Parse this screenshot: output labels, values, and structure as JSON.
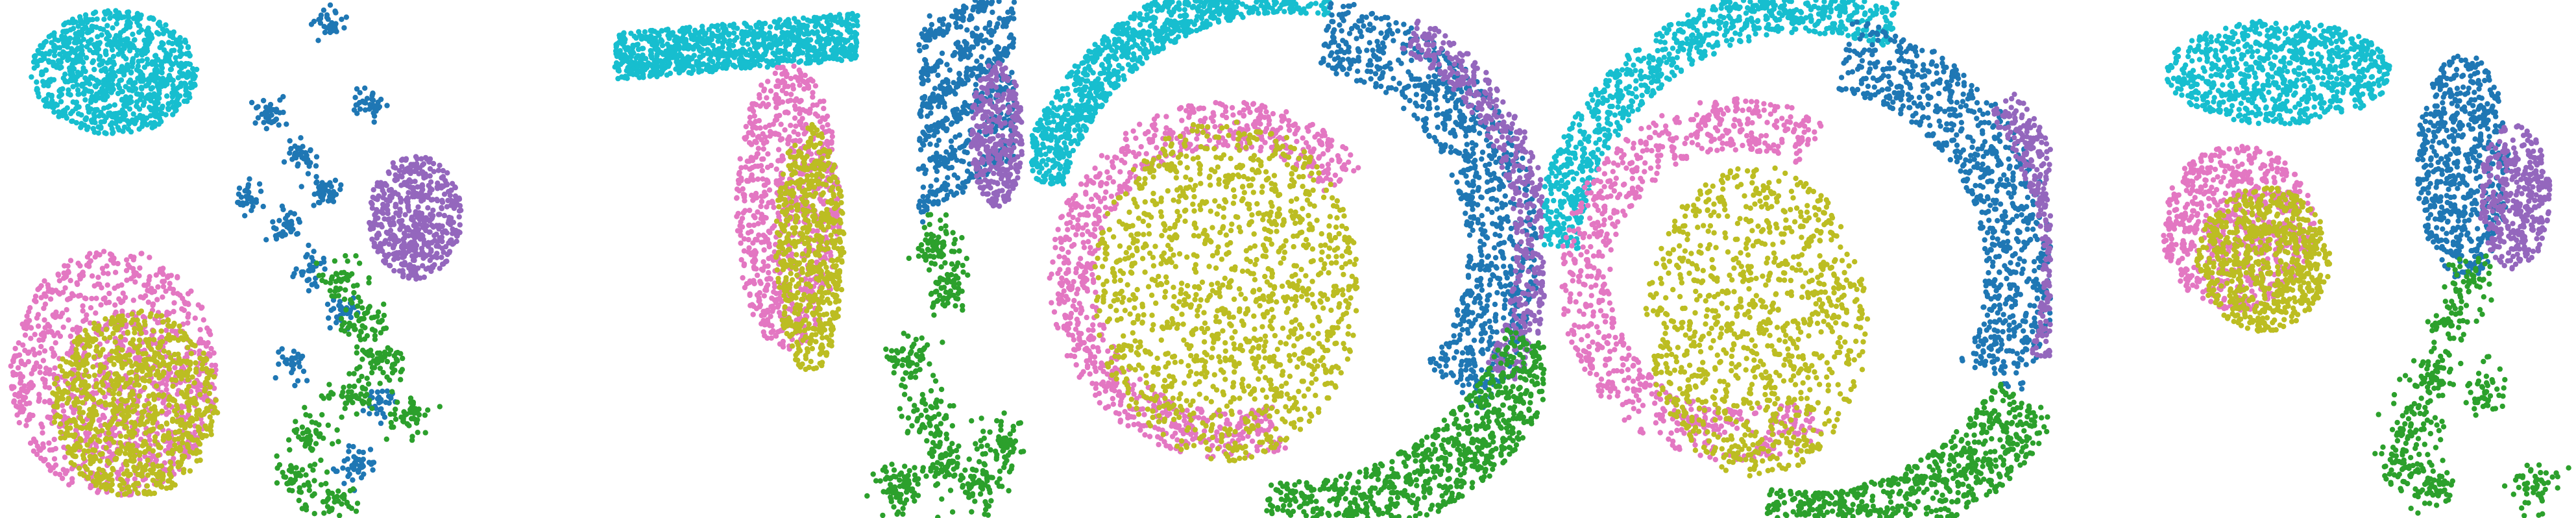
{
  "figure": {
    "description_free": true,
    "panel_count": 5,
    "point_radius_hint": "small"
  },
  "palette": {
    "cyan": "#17becf",
    "blue": "#1f77b4",
    "purple": "#9467bd",
    "green": "#2ca02c",
    "pink": "#e377c2",
    "olive": "#bcbd22"
  },
  "chart_data": [
    {
      "type": "scatter",
      "title": "",
      "xlabel": "",
      "ylabel": "",
      "grid": false,
      "axes_visible": false,
      "legend": "none",
      "xlim": [
        0,
        100
      ],
      "ylim": [
        0,
        100
      ],
      "series": [
        {
          "color": "cyan",
          "layout": "blob",
          "n": 900,
          "params": {
            "cx": 22,
            "cy": 86,
            "rx": 16,
            "ry": 12
          }
        },
        {
          "color": "blue",
          "layout": "clusters",
          "n": 420,
          "params": {
            "centers": [
              [
                52,
                78
              ],
              [
                58,
                70
              ],
              [
                63,
                63
              ],
              [
                55,
                56
              ],
              [
                60,
                48
              ],
              [
                66,
                40
              ],
              [
                71,
                80
              ],
              [
                48,
                62
              ],
              [
                63,
                96
              ],
              [
                56,
                30
              ],
              [
                73,
                22
              ],
              [
                69,
                10
              ]
            ],
            "spread": 1.6
          }
        },
        {
          "color": "purple",
          "layout": "blob",
          "n": 520,
          "params": {
            "cx": 80,
            "cy": 58,
            "rx": 9,
            "ry": 12
          }
        },
        {
          "color": "green",
          "layout": "clusters",
          "n": 380,
          "params": {
            "centers": [
              [
                66,
                46
              ],
              [
                70,
                38
              ],
              [
                74,
                30
              ],
              [
                68,
                24
              ],
              [
                60,
                16
              ],
              [
                57,
                8
              ],
              [
                64,
                4
              ],
              [
                78,
                20
              ]
            ],
            "spread": 2.2
          }
        },
        {
          "color": "pink",
          "layout": "blob",
          "n": 1100,
          "params": {
            "cx": 22,
            "cy": 28,
            "rx": 20,
            "ry": 24
          }
        },
        {
          "color": "olive",
          "layout": "blob",
          "n": 900,
          "params": {
            "cx": 26,
            "cy": 22,
            "rx": 16,
            "ry": 18
          }
        }
      ]
    },
    {
      "type": "scatter",
      "title": "",
      "xlabel": "",
      "ylabel": "",
      "grid": false,
      "axes_visible": false,
      "legend": "none",
      "xlim": [
        0,
        100
      ],
      "ylim": [
        0,
        100
      ],
      "series": [
        {
          "color": "cyan",
          "layout": "band",
          "n": 900,
          "params": {
            "x0": 4,
            "x1": 60,
            "y": 93,
            "height": 9
          }
        },
        {
          "color": "pink",
          "layout": "blob",
          "n": 800,
          "params": {
            "cx": 44,
            "cy": 60,
            "rx": 12,
            "ry": 28
          }
        },
        {
          "color": "olive",
          "layout": "blob",
          "n": 600,
          "params": {
            "cx": 49,
            "cy": 52,
            "rx": 8,
            "ry": 24
          }
        },
        {
          "color": "blue",
          "layout": "stripes",
          "n": 700,
          "params": {
            "x0": 74,
            "x1": 96,
            "y0": 60,
            "y1": 98
          }
        },
        {
          "color": "purple",
          "layout": "blob",
          "n": 350,
          "params": {
            "cx": 92,
            "cy": 74,
            "rx": 6,
            "ry": 14
          }
        },
        {
          "color": "green",
          "layout": "clusters",
          "n": 520,
          "params": {
            "centers": [
              [
                78,
                52
              ],
              [
                80,
                44
              ],
              [
                72,
                30
              ],
              [
                76,
                20
              ],
              [
                80,
                10
              ],
              [
                88,
                6
              ],
              [
                93,
                14
              ],
              [
                70,
                6
              ]
            ],
            "spread": 2.6
          }
        }
      ]
    },
    {
      "type": "scatter",
      "title": "",
      "xlabel": "",
      "ylabel": "",
      "grid": false,
      "axes_visible": false,
      "legend": "none",
      "xlim": [
        0,
        100
      ],
      "ylim": [
        0,
        100
      ],
      "series": [
        {
          "color": "cyan",
          "layout": "arc",
          "n": 1100,
          "params": {
            "cx": 50,
            "cy": 52,
            "r": 50,
            "width": 9,
            "a0": 80,
            "a1": 165
          }
        },
        {
          "color": "pink",
          "layout": "ring",
          "n": 900,
          "params": {
            "cx": 38,
            "cy": 46,
            "r": 30,
            "width": 9,
            "a0": 40,
            "a1": 290
          }
        },
        {
          "color": "olive",
          "layout": "blob",
          "n": 1300,
          "params": {
            "cx": 38,
            "cy": 44,
            "rx": 26,
            "ry": 33
          }
        },
        {
          "color": "blue",
          "layout": "arc",
          "n": 900,
          "params": {
            "cx": 50,
            "cy": 52,
            "r": 42,
            "width": 14,
            "a0": -40,
            "a1": 80
          }
        },
        {
          "color": "purple",
          "layout": "arc",
          "n": 500,
          "params": {
            "cx": 50,
            "cy": 52,
            "r": 48,
            "width": 7,
            "a0": -30,
            "a1": 60
          }
        },
        {
          "color": "green",
          "layout": "arc",
          "n": 900,
          "params": {
            "cx": 50,
            "cy": 52,
            "r": 52,
            "width": 14,
            "a0": -95,
            "a1": -20
          }
        }
      ]
    },
    {
      "type": "scatter",
      "title": "",
      "xlabel": "",
      "ylabel": "",
      "grid": false,
      "axes_visible": false,
      "legend": "none",
      "xlim": [
        0,
        100
      ],
      "ylim": [
        0,
        100
      ],
      "series": [
        {
          "color": "cyan",
          "layout": "arc",
          "n": 900,
          "params": {
            "cx": 52,
            "cy": 48,
            "r": 50,
            "width": 9,
            "a0": 70,
            "a1": 175
          }
        },
        {
          "color": "pink",
          "layout": "ring",
          "n": 800,
          "params": {
            "cx": 38,
            "cy": 46,
            "r": 30,
            "width": 10,
            "a0": 60,
            "a1": 300
          }
        },
        {
          "color": "olive",
          "layout": "blob",
          "n": 1000,
          "params": {
            "cx": 42,
            "cy": 38,
            "rx": 22,
            "ry": 30
          }
        },
        {
          "color": "blue",
          "layout": "arc",
          "n": 800,
          "params": {
            "cx": 52,
            "cy": 48,
            "r": 42,
            "width": 14,
            "a0": -30,
            "a1": 80
          }
        },
        {
          "color": "purple",
          "layout": "arc",
          "n": 450,
          "params": {
            "cx": 52,
            "cy": 48,
            "r": 50,
            "width": 7,
            "a0": -20,
            "a1": 40
          }
        },
        {
          "color": "green",
          "layout": "arc",
          "n": 800,
          "params": {
            "cx": 52,
            "cy": 48,
            "r": 50,
            "width": 14,
            "a0": -100,
            "a1": -30
          }
        }
      ]
    },
    {
      "type": "scatter",
      "title": "",
      "xlabel": "",
      "ylabel": "",
      "grid": false,
      "axes_visible": false,
      "legend": "none",
      "xlim": [
        0,
        100
      ],
      "ylim": [
        0,
        100
      ],
      "series": [
        {
          "color": "cyan",
          "layout": "blob",
          "n": 800,
          "params": {
            "cx": 42,
            "cy": 86,
            "rx": 22,
            "ry": 10
          }
        },
        {
          "color": "pink",
          "layout": "blob",
          "n": 700,
          "params": {
            "cx": 34,
            "cy": 56,
            "rx": 15,
            "ry": 16
          }
        },
        {
          "color": "olive",
          "layout": "blob",
          "n": 700,
          "params": {
            "cx": 39,
            "cy": 50,
            "rx": 13,
            "ry": 14
          }
        },
        {
          "color": "blue",
          "layout": "blob",
          "n": 600,
          "params": {
            "cx": 78,
            "cy": 68,
            "rx": 9,
            "ry": 22
          }
        },
        {
          "color": "purple",
          "layout": "blob",
          "n": 350,
          "params": {
            "cx": 88,
            "cy": 62,
            "rx": 7,
            "ry": 14
          }
        },
        {
          "color": "green",
          "layout": "clusters",
          "n": 420,
          "params": {
            "centers": [
              [
                80,
                46
              ],
              [
                76,
                38
              ],
              [
                72,
                28
              ],
              [
                68,
                18
              ],
              [
                66,
                10
              ],
              [
                72,
                6
              ],
              [
                92,
                6
              ],
              [
                82,
                24
              ]
            ],
            "spread": 2.4
          }
        }
      ]
    }
  ]
}
